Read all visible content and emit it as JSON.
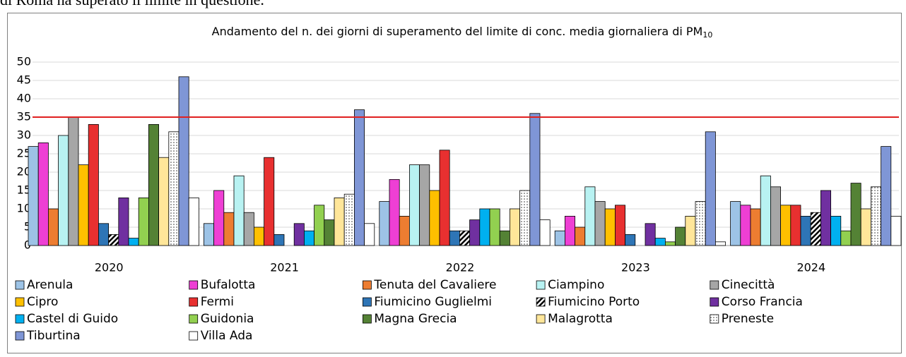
{
  "caption": "di Roma ha superato il limite in questione.",
  "chart_data": {
    "type": "bar",
    "title": "Andamento del n. dei giorni di superamento del limite di conc. media giornaliera di PM",
    "title_subscript": "10",
    "categories": [
      "2020",
      "2021",
      "2022",
      "2023",
      "2024"
    ],
    "ylim": [
      0,
      50
    ],
    "yticks": [
      0,
      5,
      10,
      15,
      20,
      25,
      30,
      35,
      40,
      45,
      50
    ],
    "grid": true,
    "limit": {
      "value": 35,
      "color": "#e02020"
    },
    "series": [
      {
        "name": "Arenula",
        "color": "#9dc3e6",
        "values": [
          27,
          6,
          12,
          4,
          12
        ]
      },
      {
        "name": "Bufalotta",
        "color": "#ee3fd4",
        "values": [
          28,
          15,
          18,
          8,
          11
        ]
      },
      {
        "name": "Tenuta del Cavaliere",
        "color": "#ed7d31",
        "values": [
          10,
          9,
          8,
          5,
          10
        ]
      },
      {
        "name": "Ciampino",
        "color": "#b8f2f2",
        "values": [
          30,
          19,
          22,
          16,
          19
        ]
      },
      {
        "name": "Cinecittà",
        "color": "#a6a6a6",
        "values": [
          35,
          9,
          22,
          12,
          16
        ]
      },
      {
        "name": "Cipro",
        "color": "#ffc000",
        "values": [
          22,
          5,
          15,
          10,
          11
        ]
      },
      {
        "name": "Fermi",
        "color": "#e83030",
        "values": [
          33,
          24,
          26,
          11,
          11
        ]
      },
      {
        "name": "Fiumicino Guglielmi",
        "color": "#2e75b6",
        "values": [
          6,
          3,
          4,
          3,
          8
        ]
      },
      {
        "name": "Fiumicino Porto",
        "color": "#3b4fc4",
        "pattern": "hatch",
        "values": [
          3,
          null,
          4,
          null,
          9
        ]
      },
      {
        "name": "Corso Francia",
        "color": "#7030a0",
        "values": [
          13,
          6,
          7,
          6,
          15
        ]
      },
      {
        "name": "Castel di Guido",
        "color": "#00b0f0",
        "values": [
          2,
          4,
          10,
          2,
          8
        ]
      },
      {
        "name": "Guidonia",
        "color": "#92d050",
        "values": [
          13,
          11,
          10,
          1,
          4
        ]
      },
      {
        "name": "Magna Grecia",
        "color": "#548235",
        "values": [
          33,
          7,
          4,
          5,
          17
        ]
      },
      {
        "name": "Malagrotta",
        "color": "#ffe699",
        "values": [
          24,
          13,
          10,
          8,
          10
        ]
      },
      {
        "name": "Preneste",
        "color": "#333333",
        "pattern": "dots",
        "values": [
          31,
          14,
          15,
          12,
          16
        ]
      },
      {
        "name": "Tiburtina",
        "color": "#7f96d6",
        "values": [
          46,
          37,
          36,
          31,
          27
        ]
      },
      {
        "name": "Villa Ada",
        "color": "#ffffff",
        "values": [
          13,
          6,
          7,
          1,
          8
        ]
      }
    ]
  }
}
